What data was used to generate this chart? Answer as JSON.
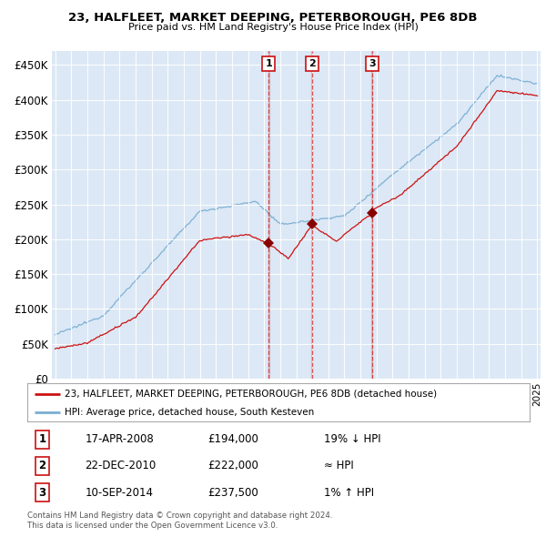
{
  "title": "23, HALFLEET, MARKET DEEPING, PETERBOROUGH, PE6 8DB",
  "subtitle": "Price paid vs. HM Land Registry's House Price Index (HPI)",
  "ylabel_ticks": [
    "£0",
    "£50K",
    "£100K",
    "£150K",
    "£200K",
    "£250K",
    "£300K",
    "£350K",
    "£400K",
    "£450K"
  ],
  "ytick_values": [
    0,
    50000,
    100000,
    150000,
    200000,
    250000,
    300000,
    350000,
    400000,
    450000
  ],
  "ylim": [
    0,
    470000
  ],
  "xlim_start": 1994.8,
  "xlim_end": 2025.2,
  "hpi_color": "#7aaed4",
  "price_color": "#cc1111",
  "sale_color": "#880000",
  "vline_color": "#cc1111",
  "bg_color": "#dce8f5",
  "sale_dates": [
    2008.29,
    2010.97,
    2014.71
  ],
  "sale_prices": [
    194000,
    222000,
    237500
  ],
  "sale_labels": [
    "1",
    "2",
    "3"
  ],
  "legend_line1": "23, HALFLEET, MARKET DEEPING, PETERBOROUGH, PE6 8DB (detached house)",
  "legend_line2": "HPI: Average price, detached house, South Kesteven",
  "table_data": [
    [
      "1",
      "17-APR-2008",
      "£194,000",
      "19% ↓ HPI"
    ],
    [
      "2",
      "22-DEC-2010",
      "£222,000",
      "≈ HPI"
    ],
    [
      "3",
      "10-SEP-2014",
      "£237,500",
      "1% ↑ HPI"
    ]
  ],
  "footer": "Contains HM Land Registry data © Crown copyright and database right 2024.\nThis data is licensed under the Open Government Licence v3.0."
}
